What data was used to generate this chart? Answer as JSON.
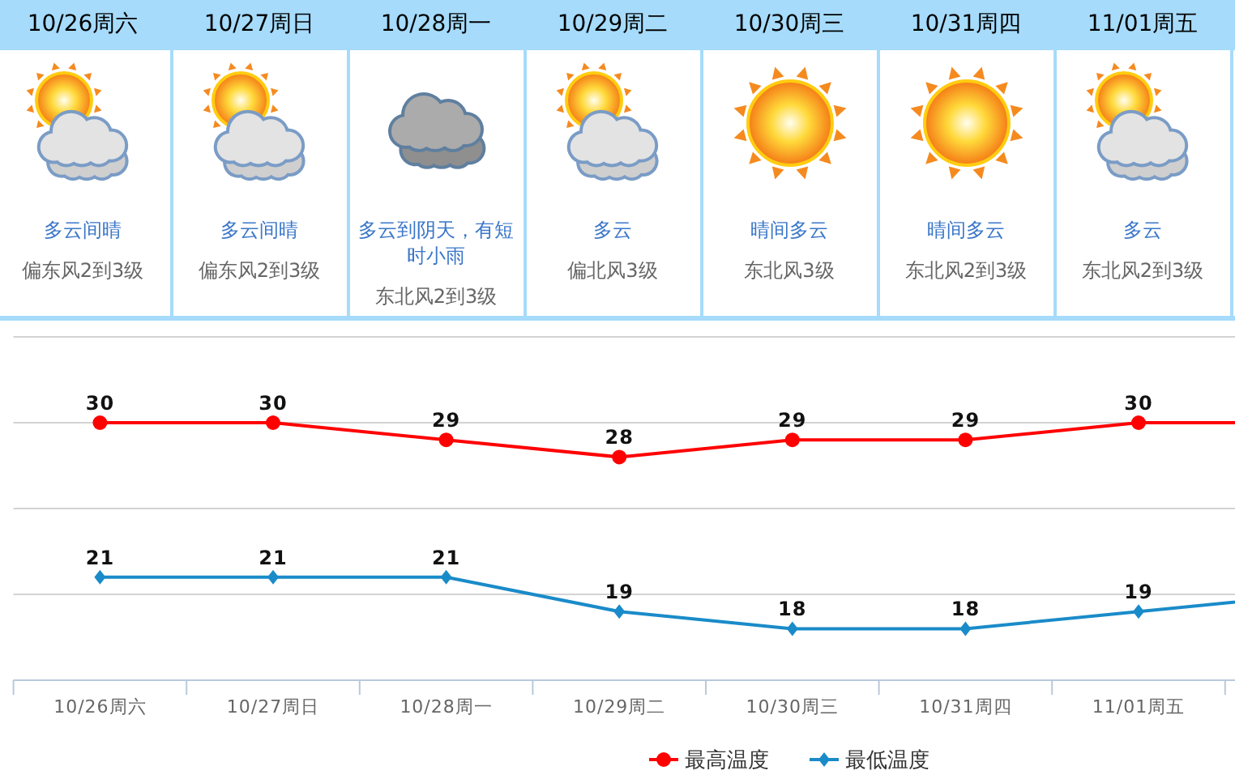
{
  "chart_data": [
    {
      "type": "other",
      "categories": [
        "10/26周六",
        "10/27周日",
        "10/28周一",
        "10/29周二",
        "10/30周三",
        "10/31周四",
        "11/01周五"
      ],
      "annotations": [
        "多云间晴",
        "多云间晴",
        "多云到阴天，有短时小雨",
        "多云",
        "晴间多云",
        "晴间多云",
        "多云",
        "偏东风2到3级",
        "偏东风2到3级",
        "东北风2到3级",
        "偏北风3级",
        "东北风3级",
        "东北风2到3级",
        "东北风2到3级"
      ]
    },
    {
      "type": "line",
      "categories": [
        "10/26周六",
        "10/27周日",
        "10/28周一",
        "10/29周二",
        "10/30周三",
        "10/31周四",
        "11/01周五",
        null
      ],
      "series": [
        {
          "name": "最高温度",
          "color": "#ff0000",
          "marker": "circle",
          "values": [
            30,
            30,
            29,
            28,
            29,
            29,
            30,
            30
          ],
          "value_labels": [
            "30",
            "30",
            "29",
            "28",
            "29",
            "29",
            "30",
            null
          ]
        },
        {
          "name": "最低温度",
          "color": "#1a8bc9",
          "marker": "diamond",
          "values": [
            21,
            21,
            21,
            19,
            18,
            18,
            19,
            20
          ],
          "value_labels": [
            "21",
            "21",
            "21",
            "19",
            "18",
            "18",
            "19",
            null
          ]
        }
      ],
      "ylim": [
        15,
        35
      ],
      "yticks": [
        15,
        20,
        25,
        30,
        35
      ],
      "tick_labels": "x",
      "grid": "y",
      "legend": "bottom"
    }
  ]
}
